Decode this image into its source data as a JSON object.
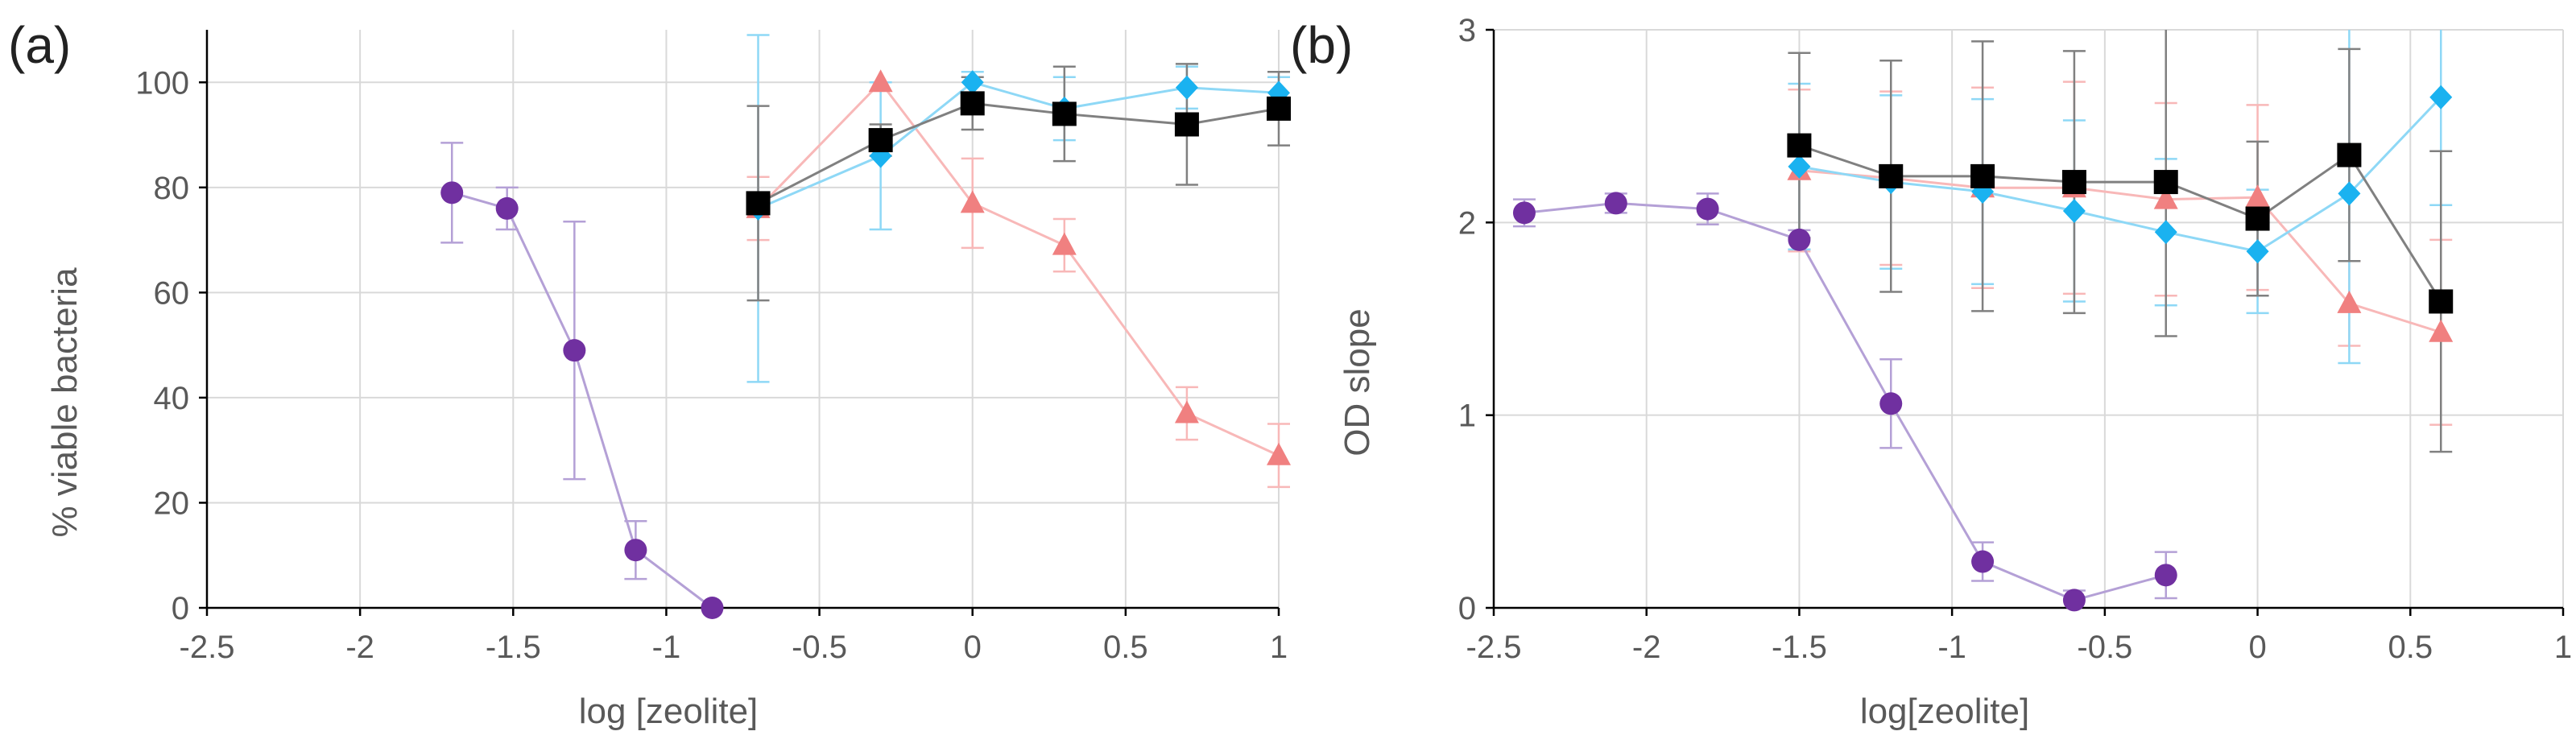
{
  "chart_data": [
    {
      "panel_label": "(a)",
      "type": "scatter",
      "xlabel": "log [zeolite]",
      "ylabel": "% viable bacteria",
      "xlim": [
        -2.5,
        1
      ],
      "ylim": [
        0,
        110
      ],
      "xticks": [
        -2.5,
        -2,
        -1.5,
        -1,
        -0.5,
        0,
        0.5,
        1
      ],
      "xtick_labels": [
        "-2.5",
        "-2",
        "-1.5",
        "-1",
        "-0.5",
        "0",
        "0.5",
        "1"
      ],
      "yticks": [
        0,
        20,
        40,
        60,
        80,
        100
      ],
      "ytick_labels": [
        "0",
        "20",
        "40",
        "60",
        "80",
        "100"
      ],
      "grid": true,
      "series": [
        {
          "name": "purple",
          "marker": "circle",
          "color": "#7030a0",
          "line_color": "#b4a0d6",
          "x": [
            -1.7,
            -1.52,
            -1.3,
            -1.1,
            -0.85
          ],
          "y": [
            79,
            76,
            49,
            11,
            0
          ],
          "err": [
            9.5,
            4,
            24.5,
            5.5,
            0
          ]
        },
        {
          "name": "pink",
          "marker": "triangle",
          "color": "#f08080",
          "line_color": "#f8b8b8",
          "x": [
            -0.7,
            -0.3,
            0,
            0.3,
            0.7,
            1
          ],
          "y": [
            76,
            100,
            77,
            69,
            37,
            29
          ],
          "err": [
            6,
            0,
            8.5,
            5,
            5,
            6
          ]
        },
        {
          "name": "cyan",
          "marker": "diamond",
          "color": "#1ab2f0",
          "line_color": "#8ed8f6",
          "x": [
            -0.7,
            -0.3,
            0,
            0.3,
            0.7,
            1
          ],
          "y": [
            76,
            86,
            100,
            95,
            99,
            98
          ],
          "err": [
            33,
            14,
            2,
            6,
            4,
            3
          ]
        },
        {
          "name": "black",
          "marker": "square",
          "color": "#000000",
          "line_color": "#808080",
          "x": [
            -0.7,
            -0.3,
            0,
            0.3,
            0.7,
            1
          ],
          "y": [
            77,
            89,
            96,
            94,
            92,
            95
          ],
          "err": [
            18.5,
            3,
            5,
            9,
            11.5,
            7
          ]
        }
      ]
    },
    {
      "panel_label": "(b)",
      "type": "scatter",
      "xlabel": "log[zeolite]",
      "ylabel": "OD slope",
      "xlim": [
        -2.5,
        1
      ],
      "ylim": [
        0,
        3
      ],
      "xticks": [
        -2.5,
        -2,
        -1.5,
        -1,
        -0.5,
        0,
        0.5,
        1
      ],
      "xtick_labels": [
        "-2.5",
        "-2",
        "-1.5",
        "-1",
        "-0.5",
        "0",
        "0.5",
        "1"
      ],
      "yticks": [
        0,
        1,
        2,
        3
      ],
      "ytick_labels": [
        "0",
        "1",
        "2",
        "3"
      ],
      "grid": true,
      "series": [
        {
          "name": "purple",
          "marker": "circle",
          "color": "#7030a0",
          "line_color": "#b4a0d6",
          "x": [
            -2.4,
            -2.1,
            -1.8,
            -1.5,
            -1.2,
            -0.9,
            -0.6,
            -0.3
          ],
          "y": [
            2.05,
            2.1,
            2.07,
            1.91,
            1.06,
            0.24,
            0.04,
            0.17
          ],
          "err": [
            0.07,
            0.05,
            0.08,
            0.05,
            0.23,
            0.1,
            0.05,
            0.12
          ]
        },
        {
          "name": "pink",
          "marker": "triangle",
          "color": "#f08080",
          "line_color": "#f8b8b8",
          "x": [
            -1.5,
            -1.2,
            -0.9,
            -0.6,
            -0.3,
            0,
            0.3,
            0.6
          ],
          "y": [
            2.27,
            2.23,
            2.18,
            2.18,
            2.12,
            2.13,
            1.58,
            1.43
          ],
          "err": [
            0.42,
            0.45,
            0.52,
            0.55,
            0.5,
            0.48,
            0.22,
            0.48
          ]
        },
        {
          "name": "cyan",
          "marker": "diamond",
          "color": "#1ab2f0",
          "line_color": "#8ed8f6",
          "x": [
            -1.5,
            -1.2,
            -0.9,
            -0.6,
            -0.3,
            0,
            0.3,
            0.6
          ],
          "y": [
            2.29,
            2.21,
            2.16,
            2.06,
            1.95,
            1.85,
            2.15,
            2.65
          ],
          "err": [
            0.43,
            0.45,
            0.48,
            0.47,
            0.38,
            0.32,
            0.88,
            0.56
          ]
        },
        {
          "name": "black",
          "marker": "square",
          "color": "#000000",
          "line_color": "#808080",
          "x": [
            -1.5,
            -1.2,
            -0.9,
            -0.6,
            -0.3,
            0,
            0.3,
            0.6
          ],
          "y": [
            2.4,
            2.24,
            2.24,
            2.21,
            2.21,
            2.02,
            2.35,
            1.59
          ],
          "err": [
            0.48,
            0.6,
            0.7,
            0.68,
            0.8,
            0.4,
            0.55,
            0.78
          ]
        }
      ]
    }
  ]
}
